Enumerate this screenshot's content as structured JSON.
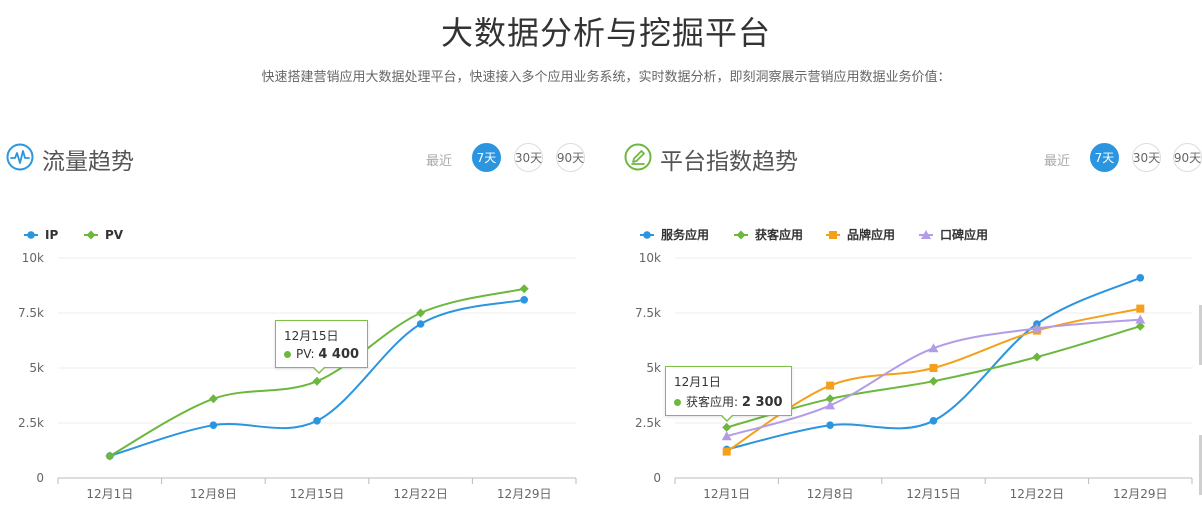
{
  "page": {
    "title": "大数据分析与挖掘平台",
    "subtitle": "快速搭建营销应用大数据处理平台，快速接入多个应用业务系统，实时数据分析，即刻洞察展示营销应用数据业务价值："
  },
  "panels": [
    {
      "title": "流量趋势",
      "icon": "pulse-icon",
      "range_label": "最近",
      "ranges": [
        "7天",
        "30天",
        "90天"
      ],
      "active_range": "7天",
      "tooltip": {
        "date": "12月15日",
        "series": "PV",
        "value": "4 400"
      }
    },
    {
      "title": "平台指数趋势",
      "icon": "pencil-icon",
      "range_label": "最近",
      "ranges": [
        "7天",
        "30天",
        "90天"
      ],
      "active_range": "7天",
      "tooltip": {
        "date": "12月1日",
        "series": "获客应用",
        "value": "2 300"
      }
    }
  ],
  "chart_data": [
    {
      "type": "line",
      "categories": [
        "12月1日",
        "12月8日",
        "12月15日",
        "12月22日",
        "12月29日"
      ],
      "y_ticks": [
        "0",
        "2.5k",
        "5k",
        "7.5k",
        "10k"
      ],
      "ylim": [
        0,
        10000
      ],
      "legend_position": "top-left",
      "series": [
        {
          "name": "IP",
          "color": "#2b95e0",
          "marker": "circle",
          "values": [
            1000,
            2400,
            2600,
            7000,
            8100
          ]
        },
        {
          "name": "PV",
          "color": "#6cb83e",
          "marker": "diamond",
          "values": [
            1000,
            3600,
            4400,
            7500,
            8600
          ]
        }
      ]
    },
    {
      "type": "line",
      "categories": [
        "12月1日",
        "12月8日",
        "12月15日",
        "12月22日",
        "12月29日"
      ],
      "y_ticks": [
        "0",
        "2.5k",
        "5k",
        "7.5k",
        "10k"
      ],
      "ylim": [
        0,
        10000
      ],
      "legend_position": "top-left",
      "series": [
        {
          "name": "服务应用",
          "color": "#2b95e0",
          "marker": "circle",
          "values": [
            1300,
            2400,
            2600,
            7000,
            9100
          ]
        },
        {
          "name": "获客应用",
          "color": "#6cb83e",
          "marker": "diamond",
          "values": [
            2300,
            3600,
            4400,
            5500,
            6900
          ]
        },
        {
          "name": "品牌应用",
          "color": "#f5a01a",
          "marker": "square",
          "values": [
            1200,
            4200,
            5000,
            6700,
            7700
          ]
        },
        {
          "name": "口碑应用",
          "color": "#b39ce6",
          "marker": "triangle",
          "values": [
            1900,
            3300,
            5900,
            6800,
            7200
          ]
        }
      ]
    }
  ]
}
